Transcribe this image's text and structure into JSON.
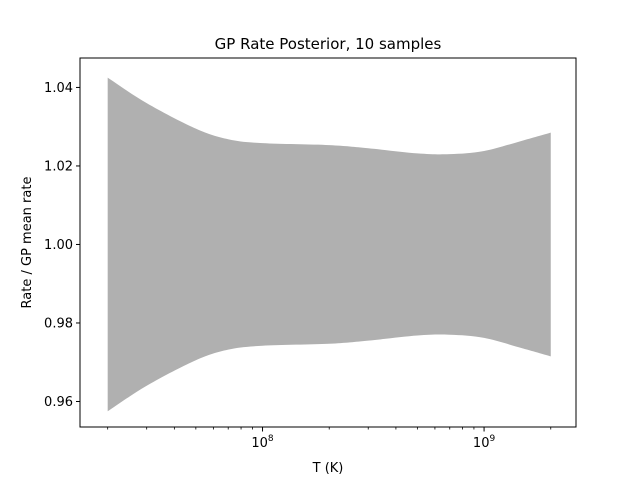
{
  "chart_data": {
    "type": "area",
    "title": "GP Rate Posterior, 10 samples",
    "xlabel": "T (K)",
    "ylabel": "Rate / GP mean rate",
    "xscale": "log",
    "xlim": [
      15000000,
      2600000000
    ],
    "ylim": [
      0.9535,
      1.0475
    ],
    "x_major_ticks": [
      {
        "value": 100000000,
        "label": "10^8",
        "base": "10",
        "exp": "8"
      },
      {
        "value": 1000000000,
        "label": "10^9",
        "base": "10",
        "exp": "9"
      }
    ],
    "x_minor_ticks": [
      20000000,
      30000000,
      40000000,
      50000000,
      60000000,
      70000000,
      80000000,
      90000000,
      200000000,
      300000000,
      400000000,
      500000000,
      600000000,
      700000000,
      800000000,
      900000000,
      2000000000
    ],
    "y_ticks": [
      {
        "value": 0.96,
        "label": "0.96"
      },
      {
        "value": 0.98,
        "label": "0.98"
      },
      {
        "value": 1.0,
        "label": "1.00"
      },
      {
        "value": 1.02,
        "label": "1.02"
      },
      {
        "value": 1.04,
        "label": "1.04"
      }
    ],
    "band_color": "#b0b0b0",
    "grid": false,
    "series": [
      {
        "x": [
          20000000,
          30000000,
          50000000,
          70000000,
          100000000,
          200000000,
          300000000,
          500000000,
          700000000,
          1000000000,
          1500000000,
          2000000000
        ],
        "upper": [
          1.0425,
          1.036,
          1.0295,
          1.0268,
          1.0258,
          1.0253,
          1.0245,
          1.0232,
          1.023,
          1.0238,
          1.0265,
          1.0285
        ],
        "lower": [
          0.9575,
          0.964,
          0.9705,
          0.9732,
          0.9742,
          0.9747,
          0.9755,
          0.9768,
          0.977,
          0.9762,
          0.9735,
          0.9715
        ]
      }
    ]
  }
}
